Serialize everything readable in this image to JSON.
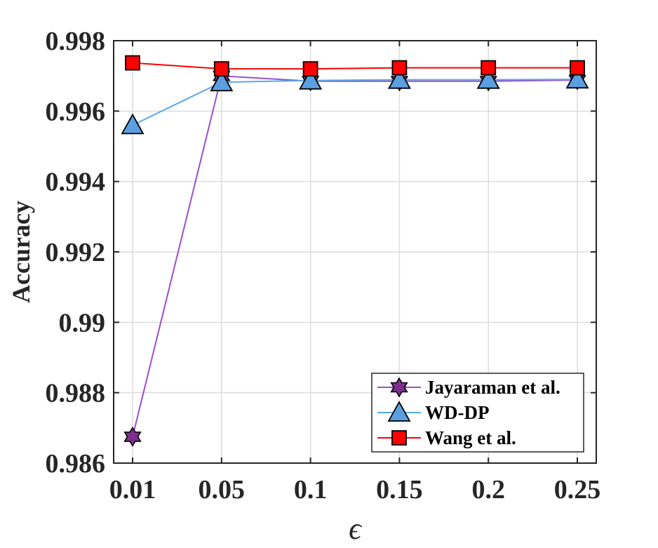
{
  "chart_data": {
    "type": "line",
    "title": "",
    "xlabel": "ϵ",
    "ylabel": "Accuracy",
    "x": [
      0.01,
      0.05,
      0.1,
      0.15,
      0.2,
      0.25
    ],
    "x_tick_labels": [
      "0.01",
      "0.05",
      "0.1",
      "0.15",
      "0.2",
      "0.25"
    ],
    "y_ticks": [
      0.986,
      0.988,
      0.99,
      0.992,
      0.994,
      0.996,
      0.998
    ],
    "y_tick_labels": [
      "0.986",
      "0.988",
      "0.99",
      "0.992",
      "0.994",
      "0.996",
      "0.998"
    ],
    "ylim": [
      0.986,
      0.998
    ],
    "grid": true,
    "legend_position": "bottom-right",
    "series": [
      {
        "name": "Jayaraman et al.",
        "marker": "star",
        "color": "#7E2F8E",
        "line_color": "#9B4FD0",
        "fill": "#7E2F8E",
        "values": [
          0.98675,
          0.997,
          0.99685,
          0.99685,
          0.99685,
          0.99688
        ]
      },
      {
        "name": "WD-DP",
        "marker": "triangle",
        "color": "#4DBEEE",
        "line_color": "#5AA9E6",
        "fill": "#5B9FE0",
        "values": [
          0.9956,
          0.99682,
          0.99687,
          0.99689,
          0.99689,
          0.9969
        ]
      },
      {
        "name": "Wang et al.",
        "marker": "square",
        "color": "#FF0000",
        "line_color": "#FF0000",
        "fill": "#FF0000",
        "values": [
          0.99737,
          0.9972,
          0.9972,
          0.99723,
          0.99723,
          0.99723
        ]
      }
    ]
  }
}
